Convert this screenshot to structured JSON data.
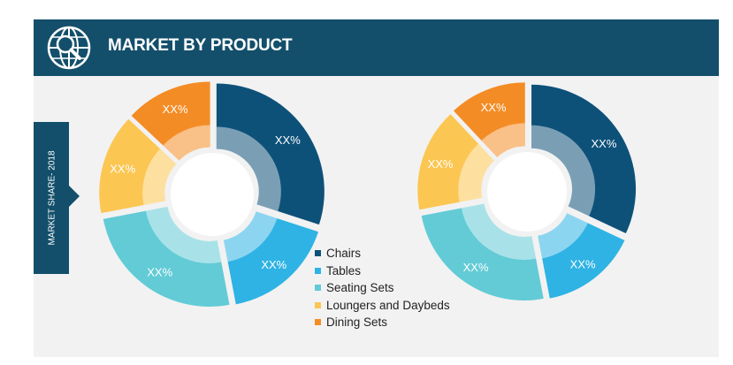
{
  "header": {
    "title": "MARKET BY PRODUCT",
    "icon": "globe-search-icon"
  },
  "side_label": "MARKET SHARE- 2018",
  "colors": {
    "header_bg": "#134f6b",
    "Chairs": "#0d5179",
    "Tables": "#2fb3e4",
    "Seating Sets": "#62cbd6",
    "Loungers and Daybeds": "#fbc652",
    "Dining Sets": "#f48c25"
  },
  "legend": [
    {
      "label": "Chairs",
      "color": "#0d5179"
    },
    {
      "label": "Tables",
      "color": "#2fb3e4"
    },
    {
      "label": "Seating Sets",
      "color": "#62cbd6"
    },
    {
      "label": "Loungers and Daybeds",
      "color": "#fbc652"
    },
    {
      "label": "Dining Sets",
      "color": "#f48c25"
    }
  ],
  "chart_data": [
    {
      "type": "pie",
      "donut": true,
      "categories": [
        "Chairs",
        "Tables",
        "Seating Sets",
        "Loungers and Daybeds",
        "Dining Sets"
      ],
      "values": [
        30,
        17,
        25,
        15,
        13
      ],
      "labels": [
        "XX%",
        "XX%",
        "XX%",
        "XX%",
        "XX%"
      ]
    },
    {
      "type": "pie",
      "donut": true,
      "categories": [
        "Chairs",
        "Tables",
        "Seating Sets",
        "Loungers and Daybeds",
        "Dining Sets"
      ],
      "values": [
        32,
        15,
        25,
        16,
        12
      ],
      "labels": [
        "XX%",
        "XX%",
        "XX%",
        "XX%",
        "XX%"
      ]
    }
  ]
}
